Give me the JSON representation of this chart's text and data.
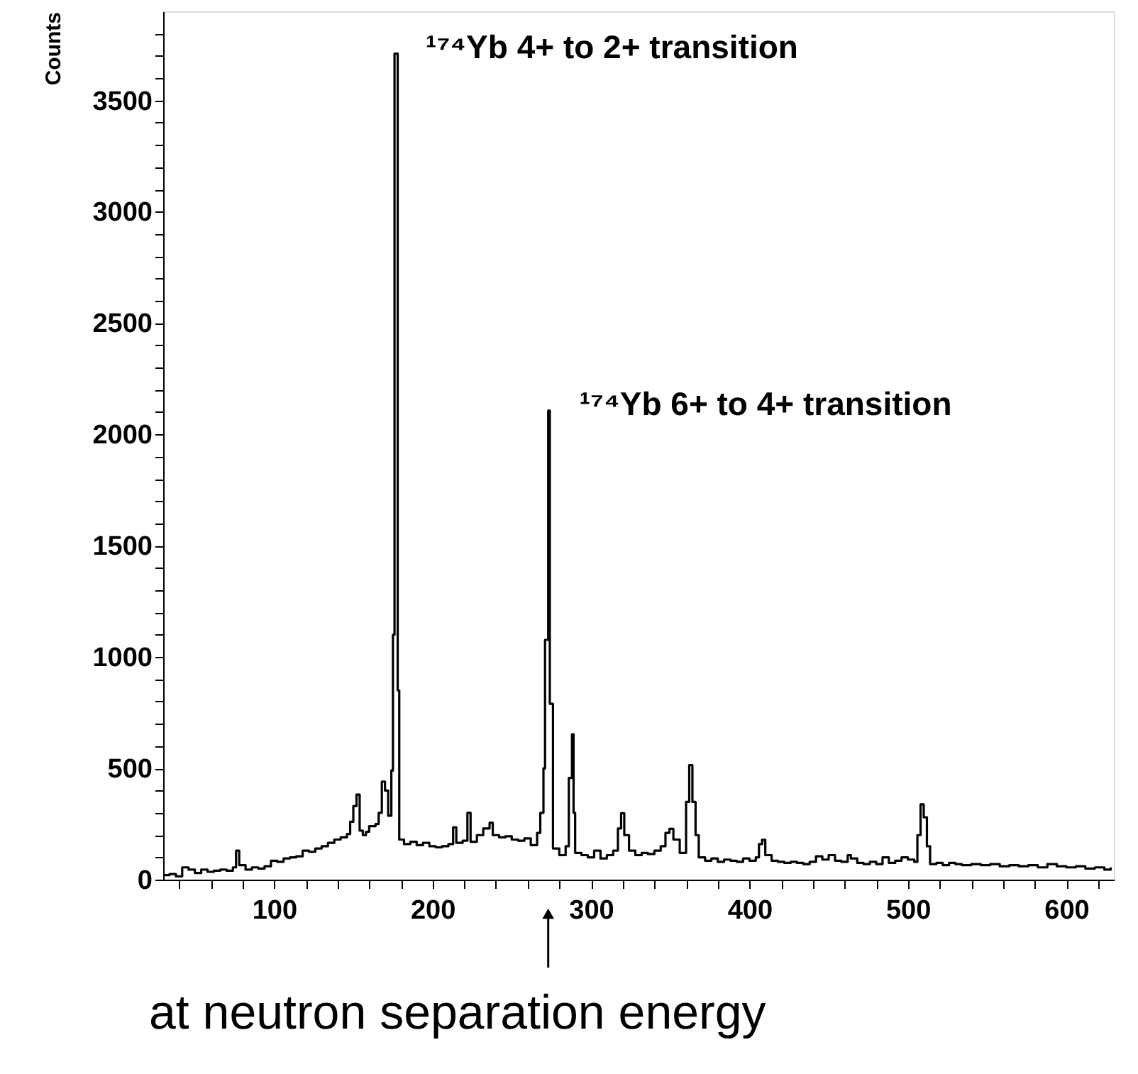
{
  "chart_data": {
    "type": "step",
    "ylabel": "Counts",
    "annotations": [
      {
        "text": "¹⁷⁴Yb 4+ to 2+ transition",
        "x": 176,
        "y": 3710
      },
      {
        "text": "¹⁷⁴Yb 6+ to 4+ transition",
        "x": 273,
        "y": 2107
      },
      "at neutron separation energy"
    ],
    "x": [
      30,
      34,
      38,
      42,
      46,
      50,
      54,
      58,
      62,
      66,
      70,
      74,
      76,
      78,
      82,
      86,
      90,
      94,
      98,
      102,
      106,
      110,
      114,
      118,
      122,
      126,
      130,
      134,
      138,
      142,
      146,
      148,
      150,
      152,
      154,
      156,
      158,
      160,
      164,
      166,
      168,
      170,
      172,
      174,
      175,
      176,
      178,
      179,
      182,
      186,
      190,
      194,
      198,
      202,
      206,
      210,
      213,
      215,
      219,
      222,
      224,
      228,
      232,
      236,
      238,
      242,
      246,
      250,
      254,
      258,
      262,
      266,
      268,
      270,
      271,
      273,
      274,
      276,
      280,
      284,
      286,
      288,
      289,
      290,
      294,
      298,
      302,
      306,
      310,
      314,
      317,
      319,
      321,
      324,
      328,
      332,
      336,
      340,
      344,
      347,
      349.5,
      352,
      356,
      360,
      362,
      364,
      366,
      368,
      372,
      376,
      380,
      384,
      388,
      392,
      396,
      400,
      404,
      406,
      408,
      410,
      414,
      418,
      422,
      426,
      430,
      434,
      438,
      442,
      446,
      450,
      454,
      458,
      462,
      464,
      468,
      472,
      476,
      480,
      484,
      488,
      492,
      496,
      500,
      504,
      506,
      508,
      510,
      512,
      514,
      518,
      522,
      526,
      530,
      534,
      540,
      546,
      552,
      558,
      564,
      570,
      576,
      582,
      588,
      594,
      600,
      606,
      612,
      618,
      624,
      628
    ],
    "series": [
      {
        "color": "#000000",
        "values": [
          20,
          25,
          15,
          55,
          45,
          30,
          45,
          35,
          40,
          45,
          40,
          55,
          130,
          65,
          45,
          55,
          50,
          60,
          85,
          80,
          95,
          100,
          105,
          130,
          125,
          140,
          150,
          165,
          180,
          190,
          205,
          260,
          330,
          382,
          220,
          200,
          215,
          240,
          250,
          300,
          440,
          400,
          287,
          490,
          1100,
          3710,
          850,
          180,
          160,
          170,
          155,
          165,
          150,
          145,
          150,
          160,
          235,
          165,
          175,
          300,
          170,
          200,
          230,
          255,
          200,
          190,
          195,
          180,
          175,
          185,
          155,
          210,
          300,
          500,
          1077,
          2107,
          790,
          140,
          110,
          150,
          457,
          653,
          300,
          120,
          110,
          100,
          130,
          95,
          110,
          130,
          230,
          298,
          200,
          130,
          110,
          120,
          115,
          130,
          150,
          210,
          228,
          180,
          120,
          349,
          514,
          349,
          200,
          100,
          85,
          95,
          80,
          90,
          85,
          80,
          95,
          85,
          100,
          160,
          179,
          110,
          85,
          80,
          75,
          80,
          75,
          70,
          80,
          105,
          90,
          110,
          85,
          80,
          110,
          95,
          75,
          70,
          80,
          70,
          100,
          75,
          85,
          100,
          90,
          80,
          200,
          338,
          280,
          150,
          70,
          75,
          65,
          75,
          70,
          65,
          70,
          65,
          70,
          60,
          65,
          60,
          65,
          55,
          70,
          60,
          55,
          60,
          50,
          55,
          45,
          55
        ]
      }
    ],
    "xlim": [
      30,
      630
    ],
    "ylim": [
      0,
      3900
    ],
    "xticks": [
      {
        "value": 40,
        "label": null
      },
      {
        "value": 60,
        "label": null
      },
      {
        "value": 80,
        "label": null
      },
      100,
      {
        "value": 120,
        "label": null
      },
      {
        "value": 140,
        "label": null
      },
      {
        "value": 160,
        "label": null
      },
      {
        "value": 180,
        "label": null
      },
      200,
      {
        "value": 220,
        "label": null
      },
      {
        "value": 240,
        "label": null
      },
      {
        "value": 260,
        "label": null
      },
      {
        "value": 280,
        "label": null
      },
      300,
      {
        "value": 320,
        "label": null
      },
      {
        "value": 340,
        "label": null
      },
      {
        "value": 360,
        "label": null
      },
      {
        "value": 380,
        "label": null
      },
      400,
      {
        "value": 420,
        "label": null
      },
      {
        "value": 440,
        "label": null
      },
      {
        "value": 460,
        "label": null
      },
      {
        "value": 480,
        "label": null
      },
      500,
      {
        "value": 520,
        "label": null
      },
      {
        "value": 540,
        "label": null
      },
      {
        "value": 560,
        "label": null
      },
      {
        "value": 580,
        "label": null
      },
      600,
      {
        "value": 620,
        "label": null
      }
    ],
    "yticks": [
      0,
      {
        "value": 100,
        "label": null
      },
      {
        "value": 200,
        "label": null
      },
      {
        "value": 300,
        "label": null
      },
      {
        "value": 400,
        "label": null
      },
      500,
      {
        "value": 600,
        "label": null
      },
      {
        "value": 700,
        "label": null
      },
      {
        "value": 800,
        "label": null
      },
      {
        "value": 900,
        "label": null
      },
      1000,
      {
        "value": 1100,
        "label": null
      },
      {
        "value": 1200,
        "label": null
      },
      {
        "value": 1300,
        "label": null
      },
      {
        "value": 1400,
        "label": null
      },
      1500,
      {
        "value": 1600,
        "label": null
      },
      {
        "value": 1700,
        "label": null
      },
      {
        "value": 1800,
        "label": null
      },
      {
        "value": 1900,
        "label": null
      },
      2000,
      {
        "value": 2100,
        "label": null
      },
      {
        "value": 2200,
        "label": null
      },
      {
        "value": 2300,
        "label": null
      },
      {
        "value": 2400,
        "label": null
      },
      2500,
      {
        "value": 2600,
        "label": null
      },
      {
        "value": 2700,
        "label": null
      },
      {
        "value": 2800,
        "label": null
      },
      {
        "value": 2900,
        "label": null
      },
      3000,
      {
        "value": 3100,
        "label": null
      },
      {
        "value": 3200,
        "label": null
      },
      {
        "value": 3300,
        "label": null
      },
      {
        "value": 3400,
        "label": null
      },
      3500,
      {
        "value": 3600,
        "label": null
      },
      {
        "value": 3700,
        "label": null
      },
      {
        "value": 3800,
        "label": null
      }
    ]
  }
}
